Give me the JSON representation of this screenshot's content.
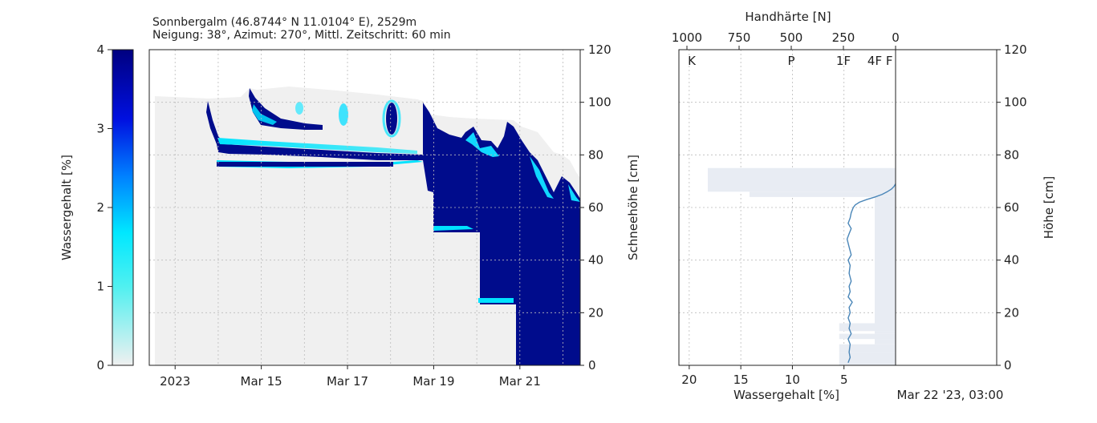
{
  "left_panel": {
    "title_line1": "Sonnbergalm (46.8744° N 11.0104° E), 2529m",
    "title_line2": "Neigung: 38°, Azimut: 270°, Mittl. Zeitschritt: 60 min",
    "colorbar_label": "Wassergehalt [%]",
    "right_axis_label": "Schneehöhe [cm]"
  },
  "right_panel": {
    "top_axis_label": "Handhärte [N]",
    "bottom_axis_label": "Wassergehalt [%]",
    "right_axis_label": "Höhe [cm]",
    "timestamp": "Mar 22 '23, 03:00"
  },
  "colors": {
    "background_gray": "#f0f0f0",
    "dark_blue": "#000080",
    "cyan": "#00ffff",
    "profile_line": "#4a86b8",
    "hardness_fill": "#e8ecf3",
    "grid": "#bbbbbb"
  },
  "chart_data": [
    {
      "type": "heatmap",
      "title": "Sonnbergalm (46.8744° N 11.0104° E), 2529m",
      "subtitle": "Neigung: 38°, Azimut: 270°, Mittl. Zeitschritt: 60 min",
      "x_tick_labels": [
        "2023",
        "Mar 15",
        "Mar 17",
        "Mar 19",
        "Mar 21"
      ],
      "x_tick_days": [
        13,
        15,
        17,
        19,
        21
      ],
      "xlim_days": [
        12.4,
        22.4
      ],
      "ylabel": "Schneehöhe [cm]",
      "ylim": [
        0,
        120
      ],
      "y_ticks": [
        0,
        20,
        40,
        60,
        80,
        100,
        120
      ],
      "colorbar": {
        "label": "Wassergehalt [%]",
        "range": [
          0,
          4
        ],
        "ticks": [
          0,
          1,
          2,
          3,
          4
        ]
      },
      "snow_height_series": {
        "day": [
          12.6,
          13.0,
          13.5,
          14.0,
          14.5,
          15.0,
          15.5,
          16.0,
          16.5,
          17.0,
          17.5,
          18.0,
          18.5,
          19.0,
          19.3,
          19.5,
          20.0,
          20.3,
          20.5,
          21.0,
          21.3,
          21.5,
          22.0,
          22.3
        ],
        "height_cm": [
          102,
          101,
          101,
          102,
          103,
          104,
          104,
          104,
          104,
          103,
          103,
          100,
          97,
          94,
          92,
          93,
          91,
          92,
          92,
          88,
          88,
          79,
          76,
          68
        ]
      }
    },
    {
      "type": "line",
      "title": "",
      "xlabel_bottom": "Wassergehalt [%]",
      "xlabel_top": "Handhärte [N]",
      "ylabel": "Höhe [cm]",
      "x_reversed": true,
      "xlim_bottom": [
        21,
        0
      ],
      "bottom_ticks": [
        20,
        15,
        10,
        5
      ],
      "xlim_top": [
        1000,
        0
      ],
      "top_ticks": [
        1000,
        750,
        500,
        250,
        0
      ],
      "hardness_labels": [
        "K",
        "P",
        "1F",
        "4F",
        "F"
      ],
      "hardness_label_positions_N": [
        1000,
        500,
        250,
        100,
        30
      ],
      "ylim": [
        0,
        120
      ],
      "y_ticks": [
        0,
        20,
        40,
        60,
        80,
        100,
        120
      ],
      "water_content_profile": {
        "height_cm": [
          1,
          3,
          5,
          8,
          10,
          12,
          14,
          16,
          18,
          20,
          22,
          24,
          26,
          28,
          30,
          32,
          35,
          38,
          40,
          42,
          45,
          48,
          50,
          52,
          54,
          56,
          58,
          60,
          61,
          62,
          63,
          64,
          65,
          66,
          67,
          68,
          69
        ],
        "water_percent": [
          4.6,
          4.4,
          4.5,
          4.4,
          4.6,
          4.3,
          4.5,
          4.4,
          4.6,
          4.4,
          4.5,
          4.2,
          4.6,
          4.4,
          4.5,
          4.3,
          4.5,
          4.4,
          4.6,
          4.3,
          4.5,
          4.7,
          4.5,
          4.3,
          4.6,
          4.4,
          4.3,
          4.1,
          3.9,
          3.5,
          2.8,
          2.0,
          1.3,
          0.8,
          0.4,
          0.15,
          0.0
        ]
      },
      "hardness_profile": {
        "layers_cm": [
          [
            0,
            5
          ],
          [
            5,
            8
          ],
          [
            8,
            10
          ],
          [
            10,
            12
          ],
          [
            12,
            13
          ],
          [
            13,
            16
          ],
          [
            16,
            64
          ],
          [
            64,
            66
          ],
          [
            66,
            75
          ]
        ],
        "hardness_N": [
          270,
          270,
          100,
          270,
          100,
          270,
          100,
          700,
          900
        ]
      }
    }
  ]
}
